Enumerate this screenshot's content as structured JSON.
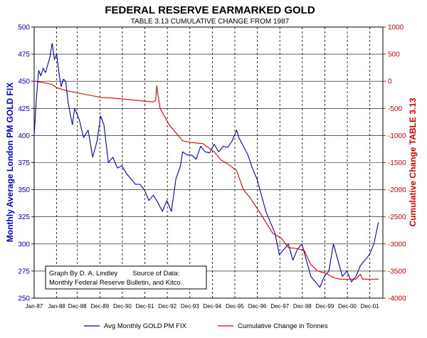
{
  "chart_data": {
    "type": "line",
    "title": "FEDERAL RESERVE EARMARKED GOLD",
    "subtitle": "TABLE 3.13 CUMULATIVE CHANGE FROM 1987",
    "ylabel_left": "Monthly Average London PM GOLD FIX",
    "ylabel_right": "Cumulative Change TABLE 3.13",
    "y_left_range": [
      250,
      500
    ],
    "y_left_ticks": [
      "500",
      "475",
      "450",
      "425",
      "400",
      "375",
      "350",
      "325",
      "300",
      "275",
      "250"
    ],
    "y_right_range": [
      -4000,
      1000
    ],
    "y_right_ticks": [
      "1000",
      "500",
      "0",
      "-500",
      "-1000",
      "-1500",
      "-2000",
      "-2500",
      "-3000",
      "-3500",
      "-4000"
    ],
    "x_range": [
      1987.0,
      2002.5
    ],
    "x_ticks": [
      "Jan-87",
      "Jan-88",
      "Dec-88",
      "Dec-89",
      "Dec-90",
      "Dec-91",
      "Dec-92",
      "Dec-93",
      "Dec-94",
      "Dec-95",
      "Dec-96",
      "Dec-97",
      "Dec-98",
      "Dec-99",
      "Dec-00",
      "Dec-01"
    ],
    "x_tick_positions": [
      1987.0,
      1988.0,
      1988.92,
      1989.92,
      1990.92,
      1991.92,
      1992.92,
      1993.92,
      1994.92,
      1995.92,
      1996.92,
      1997.92,
      1998.92,
      1999.92,
      2000.92,
      2001.92
    ],
    "grid": {
      "horizontal": true,
      "vertical_dashed": true
    },
    "annotation": {
      "line1": "Graph By D. A. Lindley        Source of Data:",
      "line2": "Monthly Federal Reserve Bulletin, and Kitco."
    },
    "series": [
      {
        "name": "Avg Monthly GOLD PM FIX",
        "axis": "left",
        "color": "#0000cc",
        "x": [
          1987.0,
          1987.1,
          1987.2,
          1987.3,
          1987.4,
          1987.5,
          1987.6,
          1987.7,
          1987.8,
          1987.9,
          1988.0,
          1988.1,
          1988.2,
          1988.3,
          1988.4,
          1988.5,
          1988.6,
          1988.7,
          1988.8,
          1988.9,
          1989.0,
          1989.2,
          1989.4,
          1989.6,
          1989.8,
          1989.95,
          1990.1,
          1990.3,
          1990.5,
          1990.7,
          1990.9,
          1991.1,
          1991.3,
          1991.5,
          1991.7,
          1991.9,
          1992.1,
          1992.3,
          1992.5,
          1992.7,
          1992.9,
          1993.1,
          1993.3,
          1993.5,
          1993.6,
          1993.8,
          1994.0,
          1994.2,
          1994.4,
          1994.6,
          1994.8,
          1995.0,
          1995.2,
          1995.4,
          1995.6,
          1995.8,
          1996.0,
          1996.1,
          1996.3,
          1996.5,
          1996.7,
          1996.9,
          1997.1,
          1997.3,
          1997.5,
          1997.7,
          1997.9,
          1998.1,
          1998.3,
          1998.5,
          1998.7,
          1998.9,
          1999.1,
          1999.3,
          1999.5,
          1999.7,
          1999.9,
          2000.1,
          2000.3,
          2000.5,
          2000.7,
          2000.9,
          2001.1,
          2001.3,
          2001.5,
          2001.7,
          2001.9,
          2002.1,
          2002.3
        ],
        "y": [
          400,
          435,
          460,
          455,
          462,
          458,
          465,
          472,
          485,
          470,
          475,
          458,
          445,
          452,
          450,
          432,
          420,
          410,
          425,
          420,
          415,
          398,
          405,
          380,
          395,
          418,
          410,
          375,
          380,
          370,
          372,
          365,
          360,
          355,
          355,
          350,
          340,
          345,
          338,
          330,
          340,
          330,
          360,
          372,
          385,
          382,
          382,
          378,
          390,
          385,
          384,
          392,
          385,
          390,
          389,
          395,
          405,
          398,
          390,
          382,
          370,
          360,
          345,
          330,
          320,
          310,
          290,
          295,
          300,
          285,
          295,
          300,
          285,
          270,
          265,
          260,
          270,
          275,
          300,
          285,
          270,
          275,
          265,
          270,
          280,
          285,
          290,
          300,
          320
        ]
      },
      {
        "name": "Cumulative Change in Tonnes",
        "axis": "right",
        "color": "#dd0000",
        "x": [
          1987.0,
          1987.5,
          1987.8,
          1988.0,
          1988.5,
          1989.0,
          1989.5,
          1990.0,
          1990.5,
          1991.0,
          1991.5,
          1992.0,
          1992.3,
          1992.4,
          1992.45,
          1992.5,
          1992.6,
          1993.0,
          1993.3,
          1993.6,
          1994.0,
          1994.5,
          1995.0,
          1995.3,
          1995.7,
          1996.0,
          1996.3,
          1996.6,
          1997.0,
          1997.3,
          1997.6,
          1998.0,
          1998.3,
          1998.6,
          1999.0,
          1999.3,
          1999.6,
          2000.0,
          2000.3,
          2000.6,
          2001.0,
          2001.3,
          2001.5,
          2001.6,
          2002.0,
          2002.3
        ],
        "y": [
          0,
          -30,
          -60,
          -120,
          -180,
          -220,
          -260,
          -300,
          -310,
          -330,
          -350,
          -370,
          -380,
          -350,
          -80,
          -250,
          -500,
          -800,
          -950,
          -1100,
          -1130,
          -1150,
          -1300,
          -1450,
          -1550,
          -1650,
          -2000,
          -2150,
          -2400,
          -2600,
          -2800,
          -2900,
          -3070,
          -3080,
          -3120,
          -3380,
          -3500,
          -3550,
          -3620,
          -3650,
          -3650,
          -3650,
          -3560,
          -3650,
          -3650,
          -3650
        ]
      }
    ]
  }
}
